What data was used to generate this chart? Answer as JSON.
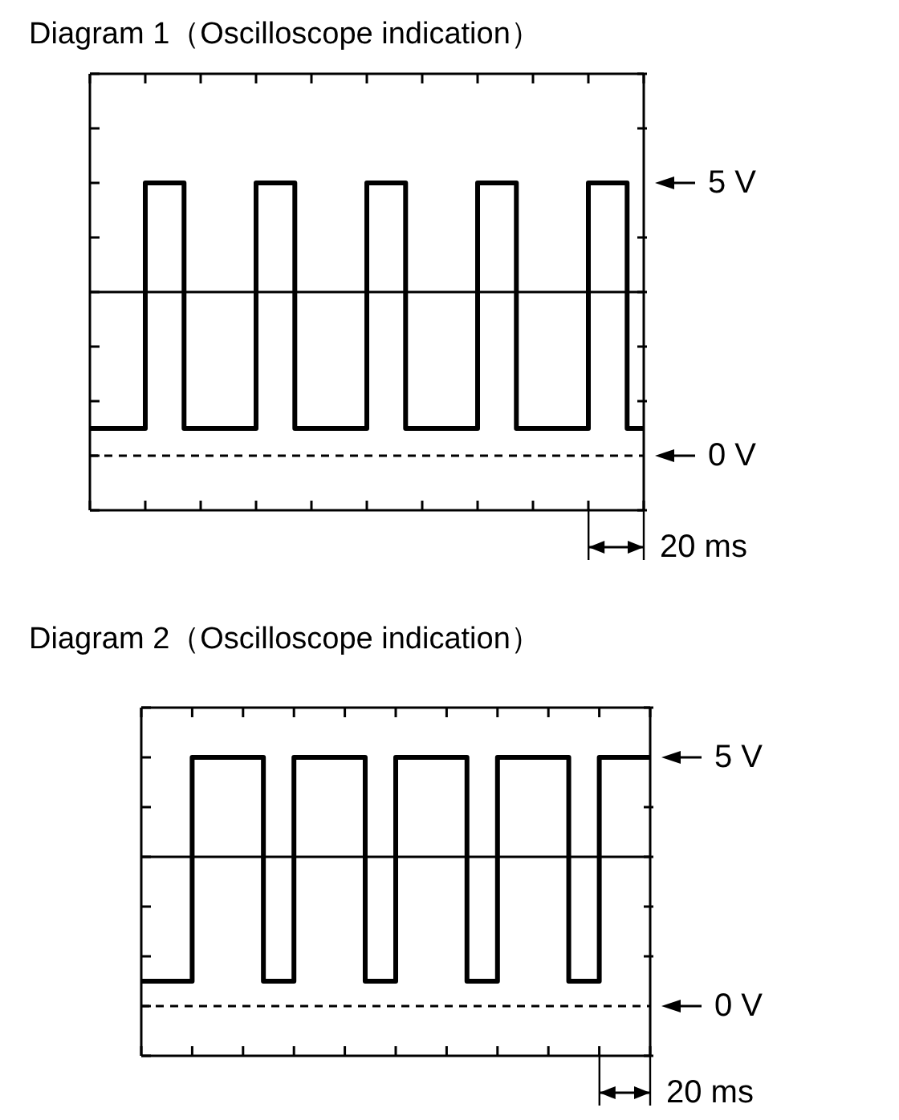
{
  "chart_data": [
    {
      "type": "step",
      "title": "Diagram 1（Oscilloscope indication）",
      "categories": [
        null,
        null,
        null,
        null,
        null,
        null,
        null,
        null,
        null,
        null,
        null,
        null,
        null,
        null,
        null,
        null,
        null,
        null,
        null,
        null,
        null,
        null,
        null,
        null,
        null,
        null,
        null,
        null,
        null,
        null,
        null,
        null,
        null,
        null,
        null,
        null,
        null,
        null,
        null,
        null,
        null,
        null,
        null,
        null,
        null,
        null,
        null,
        null,
        null,
        null,
        null,
        null,
        null,
        null,
        null,
        null,
        null,
        null,
        null,
        null,
        null,
        null,
        null,
        null,
        null,
        null,
        null,
        null,
        null,
        null,
        null,
        null,
        null,
        null,
        null,
        null,
        null,
        null,
        null,
        null,
        null,
        null,
        null,
        null,
        null,
        null,
        null,
        null,
        null,
        null,
        null,
        null,
        null,
        null,
        null,
        null,
        null,
        null,
        null,
        null,
        null
      ],
      "series": [
        {
          "color": "#000000",
          "values": [
            0.5,
            0.5,
            0.5,
            0.5,
            0.5,
            0.5,
            0.5,
            0.5,
            0.5,
            0.5,
            5,
            5,
            5,
            5,
            5,
            5,
            5,
            0.5,
            0.5,
            0.5,
            0.5,
            0.5,
            0.5,
            0.5,
            0.5,
            0.5,
            0.5,
            0.5,
            0.5,
            0.5,
            5,
            5,
            5,
            5,
            5,
            5,
            5,
            0.5,
            0.5,
            0.5,
            0.5,
            0.5,
            0.5,
            0.5,
            0.5,
            0.5,
            0.5,
            0.5,
            0.5,
            0.5,
            5,
            5,
            5,
            5,
            5,
            5,
            5,
            0.5,
            0.5,
            0.5,
            0.5,
            0.5,
            0.5,
            0.5,
            0.5,
            0.5,
            0.5,
            0.5,
            0.5,
            0.5,
            5,
            5,
            5,
            5,
            5,
            5,
            5,
            0.5,
            0.5,
            0.5,
            0.5,
            0.5,
            0.5,
            0.5,
            0.5,
            0.5,
            0.5,
            0.5,
            0.5,
            0.5,
            5,
            5,
            5,
            5,
            5,
            5,
            5,
            0.5,
            0.5,
            0.5,
            0.5
          ]
        }
      ],
      "ylim": [
        -1,
        7
      ],
      "yticks": [
        {
          "value": -1,
          "label": null
        },
        {
          "value": 0,
          "label": "0 V"
        },
        {
          "value": 1,
          "label": null
        },
        {
          "value": 2,
          "label": null
        },
        {
          "value": 3,
          "label": null
        },
        {
          "value": 4,
          "label": null
        },
        {
          "value": 5,
          "label": "5 V"
        },
        {
          "value": 6,
          "label": null
        },
        {
          "value": 7,
          "label": null
        }
      ],
      "tick_labels": "y",
      "marker": "none",
      "line_style": "solid",
      "ref_lines": [
        {
          "axis": "y",
          "value": 3,
          "color": "#000000",
          "line_style": "solid"
        },
        {
          "axis": "y",
          "value": 0,
          "color": "#000000",
          "line_style": "dashed"
        }
      ],
      "annotations": [
        "20 ms"
      ]
    },
    {
      "type": "step",
      "title": "Diagram 2（Oscilloscope indication）",
      "categories": [
        null,
        null,
        null,
        null,
        null,
        null,
        null,
        null,
        null,
        null,
        null,
        null,
        null,
        null,
        null,
        null,
        null,
        null,
        null,
        null,
        null,
        null,
        null,
        null,
        null,
        null,
        null,
        null,
        null,
        null,
        null,
        null,
        null,
        null,
        null,
        null,
        null,
        null,
        null,
        null,
        null,
        null,
        null,
        null,
        null,
        null,
        null,
        null,
        null,
        null,
        null,
        null,
        null,
        null,
        null,
        null,
        null,
        null,
        null,
        null,
        null,
        null,
        null,
        null,
        null,
        null,
        null,
        null,
        null,
        null,
        null,
        null,
        null,
        null,
        null,
        null,
        null,
        null,
        null,
        null,
        null,
        null,
        null,
        null,
        null,
        null,
        null,
        null,
        null,
        null,
        null,
        null,
        null,
        null,
        null,
        null,
        null,
        null,
        null,
        null,
        null
      ],
      "series": [
        {
          "color": "#000000",
          "values": [
            0.5,
            0.5,
            0.5,
            0.5,
            0.5,
            0.5,
            0.5,
            0.5,
            0.5,
            0.5,
            5,
            5,
            5,
            5,
            5,
            5,
            5,
            5,
            5,
            5,
            5,
            5,
            5,
            5,
            0.5,
            0.5,
            0.5,
            0.5,
            0.5,
            0.5,
            5,
            5,
            5,
            5,
            5,
            5,
            5,
            5,
            5,
            5,
            5,
            5,
            5,
            5,
            0.5,
            0.5,
            0.5,
            0.5,
            0.5,
            0.5,
            5,
            5,
            5,
            5,
            5,
            5,
            5,
            5,
            5,
            5,
            5,
            5,
            5,
            5,
            0.5,
            0.5,
            0.5,
            0.5,
            0.5,
            0.5,
            5,
            5,
            5,
            5,
            5,
            5,
            5,
            5,
            5,
            5,
            5,
            5,
            5,
            5,
            0.5,
            0.5,
            0.5,
            0.5,
            0.5,
            0.5,
            5,
            5,
            5,
            5,
            5,
            5,
            5,
            5,
            5,
            5,
            5
          ]
        }
      ],
      "ylim": [
        -1,
        6
      ],
      "yticks": [
        {
          "value": -1,
          "label": null
        },
        {
          "value": 0,
          "label": "0 V"
        },
        {
          "value": 1,
          "label": null
        },
        {
          "value": 2,
          "label": null
        },
        {
          "value": 3,
          "label": null
        },
        {
          "value": 4,
          "label": null
        },
        {
          "value": 5,
          "label": "5 V"
        },
        {
          "value": 6,
          "label": null
        }
      ],
      "tick_labels": "y",
      "marker": "none",
      "line_style": "solid",
      "ref_lines": [
        {
          "axis": "y",
          "value": 3,
          "color": "#000000",
          "line_style": "solid"
        },
        {
          "axis": "y",
          "value": 0,
          "color": "#000000",
          "line_style": "dashed"
        }
      ],
      "annotations": [
        "20 ms"
      ]
    }
  ]
}
